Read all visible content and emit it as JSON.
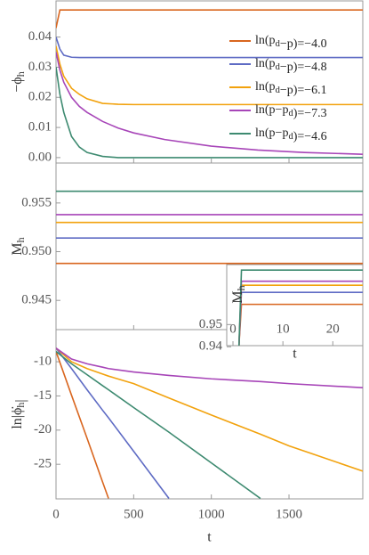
{
  "chart_data": [
    {
      "type": "line",
      "ylabel": "−ϕh",
      "x": [
        0,
        25,
        50,
        100,
        150,
        200,
        300,
        400,
        500,
        700,
        1000,
        1300,
        1600,
        1975
      ],
      "xlim": [
        0,
        1975
      ],
      "ylim": [
        -0.0018,
        0.052
      ],
      "yticks": [
        {
          "value": 0,
          "label": "0.00"
        },
        0.01,
        0.02,
        0.03,
        0.04
      ],
      "legend": "right",
      "series": [
        {
          "name": "ln(pd−p)=−4.0",
          "color": "#d9661f",
          "values": [
            0.043,
            0.049,
            0.049,
            0.049,
            0.049,
            0.049,
            0.049,
            0.049,
            0.049,
            0.049,
            0.049,
            0.049,
            0.049,
            0.049
          ]
        },
        {
          "name": "ln(pd−p)=−4.8",
          "color": "#5e6bc4",
          "values": [
            0.04,
            0.036,
            0.034,
            0.0333,
            0.0332,
            0.0332,
            0.0332,
            0.0332,
            0.0332,
            0.0332,
            0.0332,
            0.0332,
            0.0332,
            0.0332
          ]
        },
        {
          "name": "ln(pd−p)=−6.1",
          "color": "#f2a20d",
          "values": [
            0.037,
            0.031,
            0.027,
            0.023,
            0.021,
            0.0195,
            0.018,
            0.0177,
            0.0176,
            0.0176,
            0.0176,
            0.0176,
            0.0176,
            0.0176
          ]
        },
        {
          "name": "ln(p−pd)=−7.3",
          "color": "#a745b8",
          "values": [
            0.035,
            0.029,
            0.025,
            0.02,
            0.017,
            0.015,
            0.012,
            0.0098,
            0.0082,
            0.006,
            0.0038,
            0.0025,
            0.0017,
            0.0011
          ]
        },
        {
          "name": "ln(p−pd)=−4.6",
          "color": "#3d8a70",
          "values": [
            0.03,
            0.021,
            0.015,
            0.007,
            0.0035,
            0.0017,
            0.0004,
            0,
            0,
            0,
            0,
            0,
            0,
            0
          ]
        }
      ]
    },
    {
      "type": "line",
      "ylabel": "Mh",
      "x": [
        0,
        1975
      ],
      "xlim": [
        0,
        1975
      ],
      "ylim": [
        0.942,
        0.9591
      ],
      "yticks": [
        0.945,
        {
          "value": 0.95,
          "label": "0.950"
        },
        0.955
      ],
      "series": [
        {
          "color": "#d9661f",
          "values": [
            0.9488,
            0.9488
          ]
        },
        {
          "color": "#5e6bc4",
          "values": [
            0.9514,
            0.9514
          ]
        },
        {
          "color": "#f2a20d",
          "values": [
            0.953,
            0.953
          ]
        },
        {
          "color": "#a745b8",
          "values": [
            0.9538,
            0.9538
          ]
        },
        {
          "color": "#3d8a70",
          "values": [
            0.9562,
            0.9562
          ]
        }
      ]
    },
    {
      "type": "line",
      "ylabel": "ln|ϕ̇h|",
      "xlabel": "t",
      "x": [
        0,
        100,
        200,
        300,
        338,
        500,
        727,
        1000,
        1316,
        1500,
        1975
      ],
      "xlim": [
        0,
        1975
      ],
      "ylim": [
        -30.06,
        -5.3
      ],
      "xticks": [
        0,
        500,
        1000,
        1500
      ],
      "yticks": [
        -25,
        -20,
        -15,
        -10
      ],
      "series": [
        {
          "color": "#d9661f",
          "values": [
            -8.5,
            -14.9,
            -21.2,
            -27.6,
            -30,
            null,
            null,
            null,
            null,
            null,
            null
          ]
        },
        {
          "color": "#5e6bc4",
          "values": [
            -8,
            -11.0,
            -14.1,
            -17.1,
            -18.2,
            -23.1,
            -30,
            null,
            null,
            null,
            null
          ]
        },
        {
          "color": "#f2a20d",
          "values": [
            -8,
            -10.0,
            -11.0,
            -11.8,
            -12.1,
            -13.2,
            -15.3,
            -17.8,
            -20.6,
            -22.3,
            -26
          ]
        },
        {
          "color": "#a745b8",
          "values": [
            -8,
            -9.6,
            -10.3,
            -10.8,
            -11.0,
            -11.5,
            -12.0,
            -12.5,
            -12.9,
            -13.2,
            -13.8
          ]
        },
        {
          "color": "#3d8a70",
          "values": [
            -8.5,
            -10.3,
            -11.9,
            -13.5,
            -14.1,
            -16.7,
            -20.3,
            -24.8,
            -30,
            null,
            null
          ]
        }
      ]
    },
    {
      "type": "line",
      "ylabel": "Mh",
      "xlabel": "t",
      "x": [
        1.2,
        1.7,
        26
      ],
      "xlim": [
        -1.25,
        26
      ],
      "ylim": [
        0.9405,
        0.977
      ],
      "xticks": [
        0,
        10,
        20
      ],
      "yticks": [
        0.94,
        0.95
      ],
      "series": [
        {
          "color": "#d9661f",
          "values": [
            0.9405,
            0.9591,
            0.9591
          ]
        },
        {
          "color": "#5e6bc4",
          "values": [
            0.9405,
            0.9645,
            0.9645
          ]
        },
        {
          "color": "#f2a20d",
          "values": [
            0.9405,
            0.9677,
            0.9677
          ]
        },
        {
          "color": "#a745b8",
          "values": [
            0.9405,
            0.9695,
            0.9695
          ]
        },
        {
          "color": "#3d8a70",
          "values": [
            0.9405,
            0.9745,
            0.9745
          ]
        }
      ]
    }
  ]
}
